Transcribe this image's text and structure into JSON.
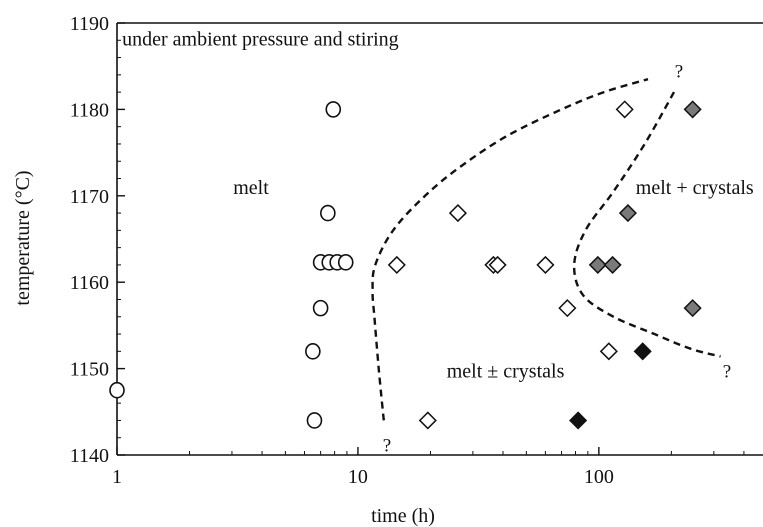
{
  "chart_data": {
    "type": "scatter",
    "title": "",
    "xlabel": "time (h)",
    "ylabel": "temperature (°C)",
    "xscale": "log",
    "xlim": [
      1,
      480
    ],
    "ylim": [
      1140,
      1190
    ],
    "x_ticks": [
      1,
      10,
      100
    ],
    "x_tick_labels": [
      "1",
      "10",
      "100"
    ],
    "y_ticks": [
      1140,
      1150,
      1160,
      1170,
      1180,
      1190
    ],
    "y_tick_labels": [
      "1140",
      "1150",
      "1160",
      "1170",
      "1180",
      "1190"
    ],
    "grid": false,
    "colors": {
      "open_marker_fill": "#ffffff",
      "grey_marker_fill": "#7a7a7a",
      "black_marker_fill": "#111111",
      "stroke": "#111111"
    },
    "series": [
      {
        "marker": "circle-open",
        "points": [
          {
            "x": 1.0,
            "y": 1147.5
          },
          {
            "x": 6.6,
            "y": 1144
          },
          {
            "x": 6.5,
            "y": 1152
          },
          {
            "x": 7.0,
            "y": 1157
          },
          {
            "x": 7.0,
            "y": 1162.3
          },
          {
            "x": 7.6,
            "y": 1162.3
          },
          {
            "x": 8.2,
            "y": 1162.3
          },
          {
            "x": 8.9,
            "y": 1162.3
          },
          {
            "x": 7.5,
            "y": 1168
          },
          {
            "x": 7.9,
            "y": 1180
          }
        ]
      },
      {
        "marker": "diamond-open",
        "points": [
          {
            "x": 19.5,
            "y": 1144
          },
          {
            "x": 14.5,
            "y": 1162
          },
          {
            "x": 26,
            "y": 1168
          },
          {
            "x": 36.5,
            "y": 1162
          },
          {
            "x": 38,
            "y": 1162
          },
          {
            "x": 60,
            "y": 1162
          },
          {
            "x": 74,
            "y": 1157
          },
          {
            "x": 110,
            "y": 1152
          },
          {
            "x": 128,
            "y": 1180
          }
        ]
      },
      {
        "marker": "diamond-grey",
        "points": [
          {
            "x": 99,
            "y": 1162
          },
          {
            "x": 114,
            "y": 1162
          },
          {
            "x": 132,
            "y": 1168
          },
          {
            "x": 245,
            "y": 1157
          },
          {
            "x": 245,
            "y": 1180
          }
        ]
      },
      {
        "marker": "diamond-black",
        "points": [
          {
            "x": 82,
            "y": 1144
          },
          {
            "x": 152,
            "y": 1152
          }
        ]
      }
    ],
    "boundaries": [
      {
        "style": "dashed",
        "points": [
          {
            "x": 12.8,
            "y": 1144
          },
          {
            "x": 12.2,
            "y": 1150
          },
          {
            "x": 11.7,
            "y": 1156
          },
          {
            "x": 11.5,
            "y": 1159
          },
          {
            "x": 11.8,
            "y": 1162
          },
          {
            "x": 14,
            "y": 1166
          },
          {
            "x": 19,
            "y": 1170
          },
          {
            "x": 27,
            "y": 1173.5
          },
          {
            "x": 42,
            "y": 1177
          },
          {
            "x": 70,
            "y": 1180
          },
          {
            "x": 105,
            "y": 1182
          },
          {
            "x": 160,
            "y": 1183.5
          }
        ]
      },
      {
        "style": "dashed",
        "points": [
          {
            "x": 205,
            "y": 1182
          },
          {
            "x": 155,
            "y": 1176
          },
          {
            "x": 115,
            "y": 1170.5
          },
          {
            "x": 88,
            "y": 1166
          },
          {
            "x": 79,
            "y": 1162
          },
          {
            "x": 86,
            "y": 1158.5
          },
          {
            "x": 115,
            "y": 1156
          },
          {
            "x": 170,
            "y": 1154
          },
          {
            "x": 240,
            "y": 1152.3
          },
          {
            "x": 320,
            "y": 1151.4
          }
        ]
      }
    ],
    "annotations": [
      {
        "text": "under ambient pressure and stiring",
        "x": 1.05,
        "y": 1188.2,
        "anchor": "start"
      },
      {
        "text": "melt",
        "x": 3.6,
        "y": 1171,
        "anchor": "middle"
      },
      {
        "text": "melt + crystals",
        "x": 250,
        "y": 1171,
        "anchor": "middle"
      },
      {
        "text": "melt ± crystals",
        "x": 41,
        "y": 1149.8,
        "anchor": "middle"
      },
      {
        "text": "?",
        "x": 215,
        "y": 1184.5,
        "anchor": "middle"
      },
      {
        "text": "?",
        "x": 340,
        "y": 1149.8,
        "anchor": "middle"
      },
      {
        "text": "?",
        "x": 13.2,
        "y": 1141.2,
        "anchor": "middle"
      }
    ]
  }
}
